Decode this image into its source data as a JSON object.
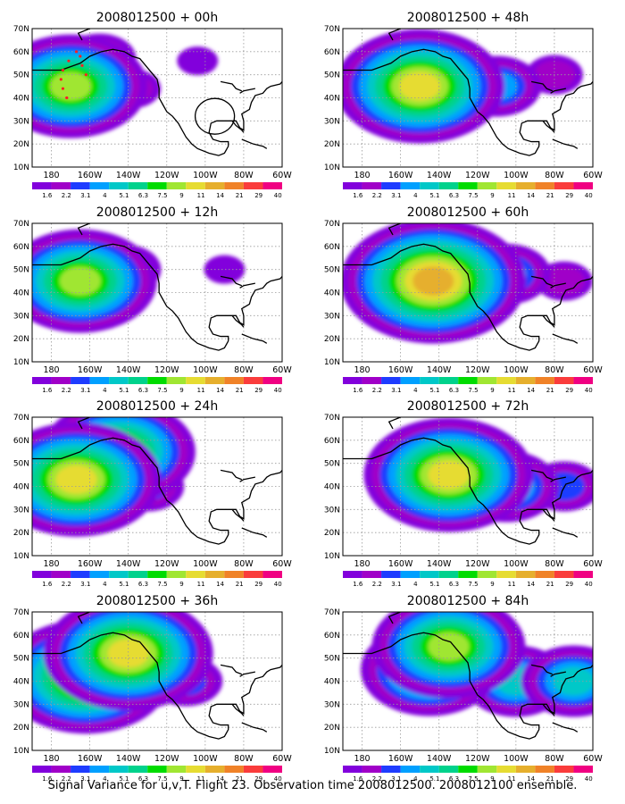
{
  "figure": {
    "caption": "Signal Variance for u,v,T. Flight 23. Observation time 2008012500. 2008012100 ensemble."
  },
  "colorbar": {
    "labels": [
      "1.6",
      "2.2",
      "3.1",
      "4",
      "5.1",
      "6.3",
      "7.5",
      "9",
      "11",
      "14",
      "21",
      "29",
      "40"
    ],
    "colors": [
      "#8200dc",
      "#a000c8",
      "#1e3cff",
      "#00a0ff",
      "#00c8c8",
      "#00d28c",
      "#00dc00",
      "#a0e632",
      "#e6dc32",
      "#e6af2d",
      "#f08228",
      "#fa3c3c",
      "#f00082"
    ]
  },
  "chart_data": [
    {
      "type": "heatmap",
      "panel": "left-col-row-1",
      "title": "2008012500 + 00h",
      "xticks": [
        "180",
        "160W",
        "140W",
        "120W",
        "100W",
        "80W",
        "60W"
      ],
      "yticks": [
        "10N",
        "20N",
        "30N",
        "40N",
        "50N",
        "60N",
        "70N"
      ],
      "xlim_lon_east": [
        170,
        300
      ],
      "ylim_lat": [
        10,
        70
      ],
      "grid": true,
      "field_centers": [
        {
          "lon": 190,
          "lat": 45,
          "value": 9
        },
        {
          "lon": 205,
          "lat": 57,
          "value": 3.1
        },
        {
          "lon": 222,
          "lat": 44,
          "value": 2.2
        },
        {
          "lon": 256,
          "lat": 56,
          "value": 1.6
        }
      ],
      "annotations": [
        "red dotted flight track near 165W-175W, 38N-60N",
        "black circle near 95W, 32N"
      ]
    },
    {
      "type": "heatmap",
      "panel": "left-col-row-2",
      "title": "2008012500 + 12h",
      "xticks": [
        "180",
        "160W",
        "140W",
        "120W",
        "100W",
        "80W",
        "60W"
      ],
      "yticks": [
        "10N",
        "20N",
        "30N",
        "40N",
        "50N",
        "60N",
        "70N"
      ],
      "xlim_lon_east": [
        170,
        300
      ],
      "ylim_lat": [
        10,
        70
      ],
      "grid": true,
      "field_centers": [
        {
          "lon": 195,
          "lat": 45,
          "value": 9
        },
        {
          "lon": 218,
          "lat": 50,
          "value": 3.1
        },
        {
          "lon": 270,
          "lat": 50,
          "value": 1.6
        }
      ]
    },
    {
      "type": "heatmap",
      "panel": "left-col-row-3",
      "title": "2008012500 + 24h",
      "xticks": [
        "180",
        "160W",
        "140W",
        "120W",
        "100W",
        "80W",
        "60W"
      ],
      "yticks": [
        "10N",
        "20N",
        "30N",
        "40N",
        "50N",
        "60N",
        "70N"
      ],
      "xlim_lon_east": [
        170,
        300
      ],
      "ylim_lat": [
        10,
        70
      ],
      "grid": true,
      "field_centers": [
        {
          "lon": 193,
          "lat": 43,
          "value": 11
        },
        {
          "lon": 215,
          "lat": 55,
          "value": 9
        },
        {
          "lon": 230,
          "lat": 40,
          "value": 3.1
        }
      ]
    },
    {
      "type": "heatmap",
      "panel": "left-col-row-4",
      "title": "2008012500 + 36h",
      "xticks": [
        "180",
        "160W",
        "140W",
        "120W",
        "100W",
        "80W",
        "60W"
      ],
      "yticks": [
        "10N",
        "20N",
        "30N",
        "40N",
        "50N",
        "60N",
        "70N"
      ],
      "xlim_lon_east": [
        170,
        300
      ],
      "ylim_lat": [
        10,
        70
      ],
      "grid": true,
      "field_centers": [
        {
          "lon": 198,
          "lat": 42,
          "value": 11
        },
        {
          "lon": 220,
          "lat": 52,
          "value": 11
        },
        {
          "lon": 250,
          "lat": 40,
          "value": 3.1
        }
      ]
    },
    {
      "type": "heatmap",
      "panel": "right-col-row-1",
      "title": "2008012500 + 48h",
      "xticks": [
        "180",
        "160W",
        "140W",
        "120W",
        "100W",
        "80W",
        "60W"
      ],
      "yticks": [
        "10N",
        "20N",
        "30N",
        "40N",
        "50N",
        "60N",
        "70N"
      ],
      "xlim_lon_east": [
        170,
        300
      ],
      "ylim_lat": [
        10,
        70
      ],
      "grid": true,
      "field_centers": [
        {
          "lon": 210,
          "lat": 45,
          "value": 11
        },
        {
          "lon": 250,
          "lat": 45,
          "value": 4
        },
        {
          "lon": 280,
          "lat": 50,
          "value": 2.2
        }
      ]
    },
    {
      "type": "heatmap",
      "panel": "right-col-row-2",
      "title": "2008012500 + 60h",
      "xticks": [
        "180",
        "160W",
        "140W",
        "120W",
        "100W",
        "80W",
        "60W"
      ],
      "yticks": [
        "10N",
        "20N",
        "30N",
        "40N",
        "50N",
        "60N",
        "70N"
      ],
      "xlim_lon_east": [
        170,
        300
      ],
      "ylim_lat": [
        10,
        70
      ],
      "grid": true,
      "field_centers": [
        {
          "lon": 217,
          "lat": 45,
          "value": 14
        },
        {
          "lon": 255,
          "lat": 48,
          "value": 4
        },
        {
          "lon": 285,
          "lat": 45,
          "value": 2.2
        }
      ]
    },
    {
      "type": "heatmap",
      "panel": "right-col-row-3",
      "title": "2008012500 + 72h",
      "xticks": [
        "180",
        "160W",
        "140W",
        "120W",
        "100W",
        "80W",
        "60W"
      ],
      "yticks": [
        "10N",
        "20N",
        "30N",
        "40N",
        "50N",
        "60N",
        "70N"
      ],
      "xlim_lon_east": [
        170,
        300
      ],
      "ylim_lat": [
        10,
        70
      ],
      "grid": true,
      "field_centers": [
        {
          "lon": 225,
          "lat": 45,
          "value": 11
        },
        {
          "lon": 255,
          "lat": 40,
          "value": 5.1
        },
        {
          "lon": 285,
          "lat": 40,
          "value": 3.1
        }
      ]
    },
    {
      "type": "heatmap",
      "panel": "right-col-row-4",
      "title": "2008012500 + 84h",
      "xticks": [
        "180",
        "160W",
        "140W",
        "120W",
        "100W",
        "80W",
        "60W"
      ],
      "yticks": [
        "10N",
        "20N",
        "30N",
        "40N",
        "50N",
        "60N",
        "70N"
      ],
      "xlim_lon_east": [
        170,
        300
      ],
      "ylim_lat": [
        10,
        70
      ],
      "grid": true,
      "field_centers": [
        {
          "lon": 225,
          "lat": 55,
          "value": 9
        },
        {
          "lon": 215,
          "lat": 45,
          "value": 7.5
        },
        {
          "lon": 260,
          "lat": 40,
          "value": 5.1
        },
        {
          "lon": 290,
          "lat": 40,
          "value": 5.1
        }
      ]
    }
  ]
}
